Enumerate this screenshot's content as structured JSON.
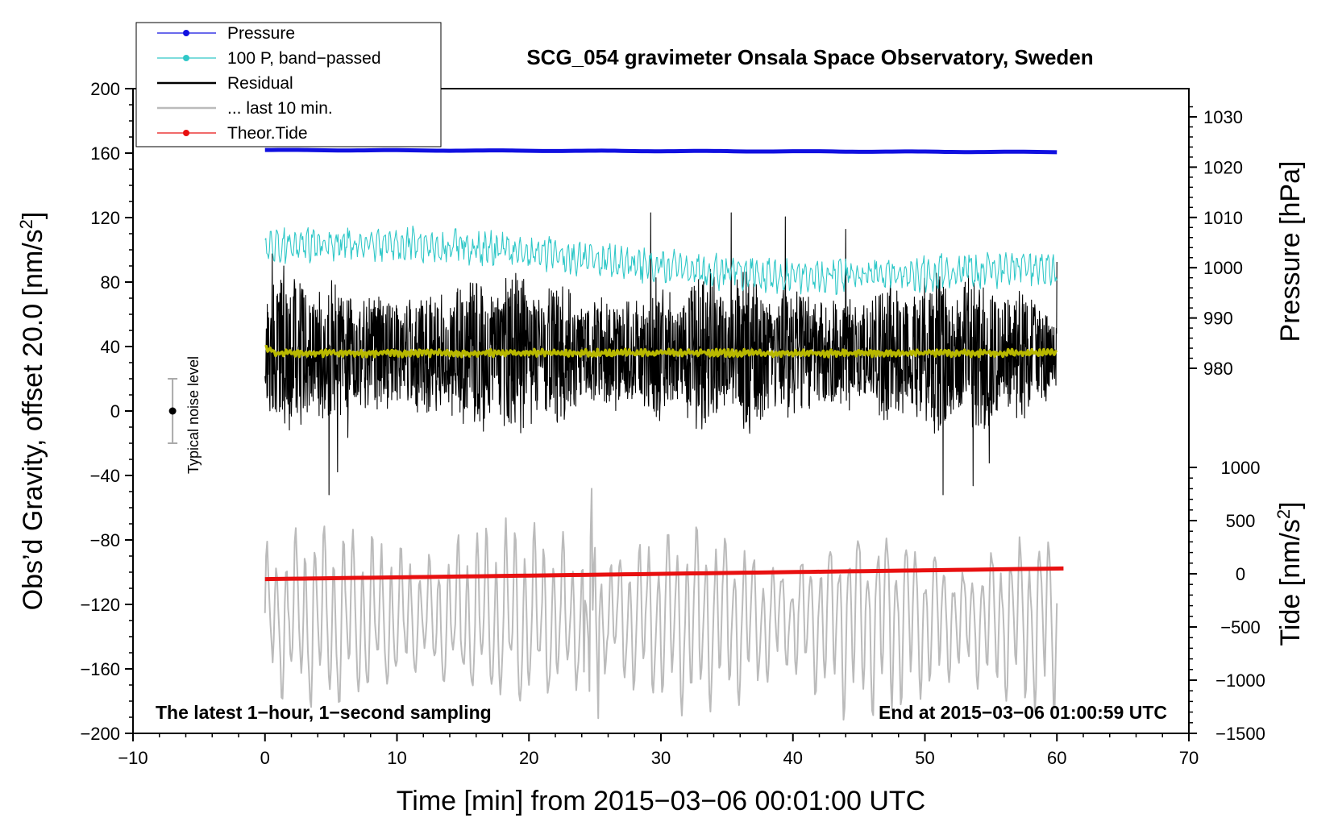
{
  "chart_data": {
    "type": "line",
    "title": "SCG_054 gravimeter Onsala Space Observatory, Sweden",
    "xlabel": "Time [min] from 2015−03−06 00:01:00 UTC",
    "ylabel_main": "Obs’d Gravity, offset 20.0 [nm/s",
    "ylabel_main_sup": "2",
    "ylabel_main_end": "]",
    "ylabel_pressure": "Pressure [hPa]",
    "ylabel_tide": "Tide [nm/s",
    "ylabel_tide_sup": "2",
    "ylabel_tide_end": "]",
    "xlim": [
      -10,
      70
    ],
    "ylim": [
      -200,
      200
    ],
    "pressure_lim": [
      976,
      1033
    ],
    "tide_lim": [
      -1500,
      1500
    ],
    "x_ticks": [
      "−10",
      "0",
      "10",
      "20",
      "30",
      "40",
      "50",
      "60",
      "70"
    ],
    "x_tick_values": [
      -10,
      0,
      10,
      20,
      30,
      40,
      50,
      60,
      70
    ],
    "y_ticks": [
      "200",
      "160",
      "120",
      "80",
      "40",
      "0",
      "−40",
      "−80",
      "−120",
      "−160",
      "−200"
    ],
    "y_tick_values": [
      200,
      160,
      120,
      80,
      40,
      0,
      -40,
      -80,
      -120,
      -160,
      -200
    ],
    "pressure_ticks": [
      "1030",
      "1020",
      "1010",
      "1000",
      "990",
      "980"
    ],
    "pressure_tick_values": [
      1030,
      1020,
      1010,
      1000,
      990,
      980
    ],
    "tide_ticks": [
      "1000",
      "500",
      "0",
      "−500",
      "−1000",
      "−1500"
    ],
    "tide_tick_values": [
      1000,
      500,
      0,
      -500,
      -1000,
      -1500
    ],
    "legend": [
      {
        "label": "Pressure",
        "color": "#1010e0",
        "marker": true
      },
      {
        "label": "100 P, band−passed",
        "color": "#30c8c8",
        "marker": true
      },
      {
        "label": "Residual",
        "color": "#000000",
        "marker": false
      },
      {
        "label": "... last 10 min.",
        "color": "#bbbbbb",
        "marker": false
      },
      {
        "label": "Theor.Tide",
        "color": "#e81010",
        "marker": true
      }
    ],
    "series": [
      {
        "name": "Pressure",
        "axis": "pressure",
        "color": "#1010e0",
        "x": [
          0,
          60
        ],
        "values": [
          1023.4,
          1023.0
        ]
      },
      {
        "name": "100 P, band-passed",
        "axis": "main",
        "color": "#30c8c8",
        "center": [
          0,
          60
        ],
        "center_values": [
          100,
          85
        ],
        "amplitude": 8
      },
      {
        "name": "Residual",
        "axis": "main",
        "color": "#000000",
        "center": 36,
        "amplitude_range": [
          -52,
          123
        ]
      },
      {
        "name": "Residual smoothed",
        "axis": "main",
        "color": "#b8b800",
        "center": 36
      },
      {
        "name": "... last 10 min.",
        "axis": "tide",
        "color": "#bbbbbb",
        "range": [
          -1500,
          800
        ]
      },
      {
        "name": "Theor.Tide",
        "axis": "tide",
        "color": "#e81010",
        "x": [
          0,
          60.5
        ],
        "values": [
          -50,
          50
        ]
      }
    ],
    "noise_label": "Typical noise level",
    "noise_center": 0,
    "noise_range": [
      -20,
      20
    ],
    "noise_x": -7,
    "note_left": "The latest 1−hour, 1−second sampling",
    "note_right": "End at 2015−03−06 01:00:59 UTC"
  }
}
